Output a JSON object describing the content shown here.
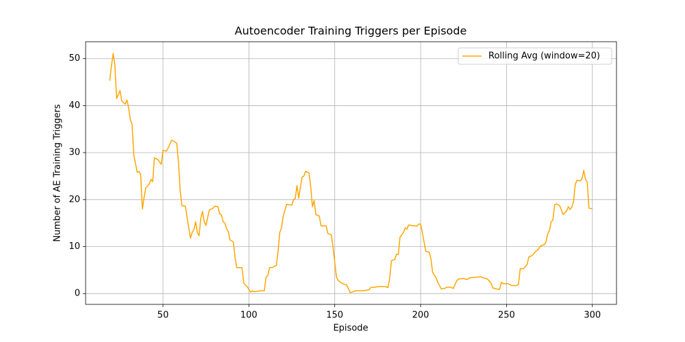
{
  "chart_data": {
    "type": "line",
    "title": "Autoencoder Training Triggers per Episode",
    "x_label": "Episode",
    "y_label": "Number of AE Training Triggers",
    "x": [
      19,
      20,
      21,
      22,
      23,
      25,
      26,
      28,
      29,
      30,
      31,
      32,
      33,
      35,
      36,
      37,
      38,
      39,
      40,
      42,
      43,
      44,
      45,
      47,
      49,
      50,
      52,
      53,
      55,
      56,
      58,
      59,
      60,
      61,
      63,
      65,
      66,
      67,
      68,
      69,
      70,
      71,
      72,
      73,
      74,
      75,
      77,
      79,
      80,
      82,
      83,
      84,
      85,
      86,
      87,
      88,
      89,
      91,
      92,
      93,
      96,
      97,
      98,
      99,
      101,
      102,
      103,
      107,
      109,
      110,
      111,
      112,
      114,
      116,
      117,
      118,
      119,
      120,
      122,
      125,
      126,
      127,
      128,
      129,
      131,
      132,
      133,
      135,
      136,
      137,
      138,
      139,
      141,
      142,
      145,
      146,
      148,
      149,
      151,
      152,
      154,
      157,
      159,
      161,
      162,
      166,
      170,
      171,
      174,
      176,
      179,
      181,
      182,
      183,
      185,
      186,
      187,
      188,
      190,
      191,
      192,
      193,
      196,
      198,
      199,
      200,
      201,
      203,
      205,
      206,
      207,
      209,
      210,
      212,
      214,
      215,
      217,
      219,
      221,
      222,
      225,
      227,
      229,
      233,
      235,
      237,
      239,
      241,
      242,
      245,
      246,
      247,
      248,
      251,
      253,
      256,
      257,
      258,
      260,
      262,
      263,
      265,
      267,
      268,
      270,
      272,
      273,
      274,
      275,
      276,
      277,
      278,
      279,
      281,
      283,
      285,
      286,
      287,
      288,
      289,
      290,
      291,
      293,
      294,
      295,
      296,
      297,
      298,
      299,
      300
    ],
    "series": [
      {
        "name": "Rolling Avg (window=20)",
        "color": "#ffa500",
        "values": [
          45.3,
          48.5,
          51.1,
          48.5,
          41.5,
          43.2,
          41,
          40.3,
          41.2,
          39.5,
          37,
          36,
          29.5,
          25.8,
          26,
          25.3,
          18,
          20.5,
          22.5,
          23.3,
          24.3,
          23.8,
          28.9,
          28.5,
          27.5,
          30.5,
          30.3,
          31,
          32.6,
          32.5,
          32,
          28,
          22,
          18.7,
          18.6,
          14,
          11.8,
          13,
          13.6,
          15.3,
          13,
          12.3,
          16,
          17.5,
          15.3,
          14.5,
          17.8,
          18.1,
          18.6,
          18.5,
          17,
          16.8,
          15.3,
          15,
          13.8,
          13.2,
          11.4,
          11,
          7.5,
          5.5,
          5.5,
          2.3,
          1.8,
          1.5,
          0.3,
          0.6,
          0.4,
          0.6,
          0.6,
          3.5,
          3.8,
          5.5,
          5.6,
          6,
          9,
          13,
          14,
          16.5,
          19,
          18.8,
          20,
          20.2,
          23,
          20.3,
          24.8,
          25,
          26,
          25.7,
          22.8,
          18.5,
          19.8,
          16.8,
          16.5,
          14.4,
          14.4,
          12.8,
          12.5,
          9.8,
          3.5,
          2.8,
          2.2,
          1.8,
          0.2,
          0.4,
          0.6,
          0.6,
          0.8,
          1.3,
          1.4,
          1.5,
          1.5,
          1.3,
          3.3,
          7,
          7.3,
          8.4,
          8.3,
          12,
          13,
          14,
          13.7,
          14.6,
          14.4,
          14.4,
          14.8,
          14.8,
          13,
          9,
          8.8,
          7.4,
          4.5,
          3.4,
          2.4,
          1,
          1.1,
          1.3,
          1.4,
          1.1,
          2.7,
          3.1,
          3.2,
          3,
          3.4,
          3.5,
          3.6,
          3.3,
          3.1,
          2.2,
          1.2,
          0.9,
          0.9,
          2.4,
          2.1,
          2.1,
          1.7,
          1.7,
          2,
          5.3,
          5.3,
          6.2,
          7.8,
          8.1,
          9,
          9.2,
          10.2,
          10.4,
          11,
          12.7,
          13.4,
          15.3,
          15.6,
          18.9,
          19.1,
          18.7,
          16.8,
          17.6,
          18.5,
          17.9,
          18.4,
          19.5,
          23.2,
          24.1,
          24,
          24.5,
          26.2,
          24.3,
          23.8,
          18.2,
          18.1,
          18.1
        ]
      }
    ],
    "xlim": [
      4.95,
      314.05
    ],
    "ylim": [
      -2.3,
      53.6
    ],
    "xticks": [
      50,
      100,
      150,
      200,
      250,
      300
    ],
    "yticks": [
      0,
      10,
      20,
      30,
      40,
      50
    ],
    "grid": true,
    "legend": "upper right"
  }
}
